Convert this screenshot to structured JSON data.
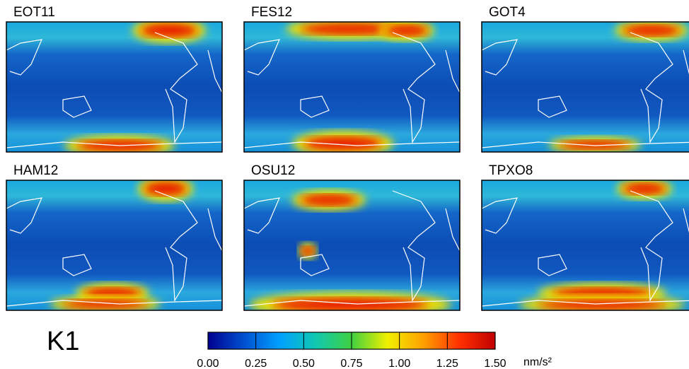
{
  "panels": [
    {
      "title": "EOT11"
    },
    {
      "title": "FES12"
    },
    {
      "title": "GOT4"
    },
    {
      "title": "HAM12"
    },
    {
      "title": "OSU12"
    },
    {
      "title": "TPXO8"
    }
  ],
  "label": "K1",
  "colorbar": {
    "lim": [
      0,
      1.5
    ],
    "ticks": [
      {
        "value": 0,
        "label": "0.00"
      },
      {
        "value": 0.25,
        "label": "0.25"
      },
      {
        "value": 0.5,
        "label": "0.50"
      },
      {
        "value": 0.75,
        "label": "0.75"
      },
      {
        "value": 1,
        "label": "1.00"
      },
      {
        "value": 1.25,
        "label": "1.25"
      },
      {
        "value": 1.5,
        "label": "1.50"
      }
    ],
    "unit": "nm/s²",
    "colors": [
      "#00008f",
      "#0050d0",
      "#00a0ff",
      "#10c8b0",
      "#40d040",
      "#f0f000",
      "#ffa000",
      "#ff3000",
      "#c00000"
    ]
  }
}
